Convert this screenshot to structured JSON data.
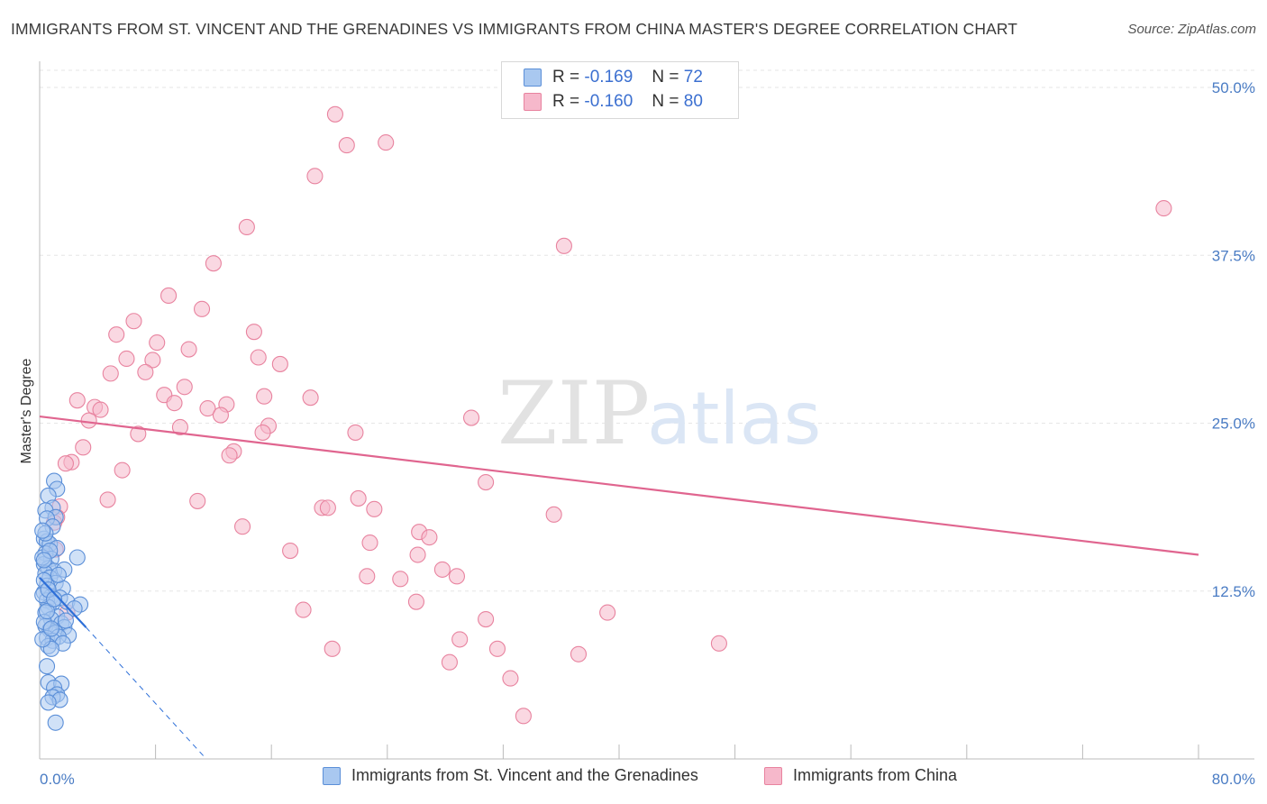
{
  "title": "IMMIGRANTS FROM ST. VINCENT AND THE GRENADINES VS IMMIGRANTS FROM CHINA MASTER'S DEGREE CORRELATION CHART",
  "source": "Source: ZipAtlas.com",
  "watermark": {
    "zip": "ZIP",
    "atlas": "atlas"
  },
  "legend": {
    "rows": [
      {
        "r_label": "R =",
        "r_value": "-0.169",
        "n_label": "N =",
        "n_value": "72"
      },
      {
        "r_label": "R =",
        "r_value": "-0.160",
        "n_label": "N =",
        "n_value": "80"
      }
    ]
  },
  "colors": {
    "blue_fill": "#a9c8f0",
    "blue_stroke": "#5b8fd8",
    "blue_line": "#2d6fd8",
    "pink_fill": "#f6b8cb",
    "pink_stroke": "#e8839f",
    "pink_line": "#e0658f",
    "tick_text": "#4a7cc4",
    "grid": "#e6e6e6"
  },
  "chart_data": {
    "type": "scatter",
    "title": "IMMIGRANTS FROM ST. VINCENT AND THE GRENADINES VS IMMIGRANTS FROM CHINA MASTER'S DEGREE CORRELATION CHART",
    "xlabel": "",
    "ylabel": "Master's Degree",
    "xlim": [
      0,
      80
    ],
    "ylim": [
      0,
      52
    ],
    "x_tick_labels": [
      {
        "value": 0,
        "label": "0.0%"
      },
      {
        "value": 80,
        "label": "80.0%"
      }
    ],
    "y_tick_labels": [
      {
        "value": 12.5,
        "label": "12.5%"
      },
      {
        "value": 25,
        "label": "25.0%"
      },
      {
        "value": 37.5,
        "label": "37.5%"
      },
      {
        "value": 50,
        "label": "50.0%"
      }
    ],
    "series": [
      {
        "name": "Immigrants from St. Vincent and the Grenadines",
        "color": "blue",
        "r": -0.169,
        "n": 72,
        "trend": {
          "x0": 0,
          "y0": 13.5,
          "x1": 3.2,
          "y1": 9.8,
          "dashed_to": {
            "x": 11.5,
            "y": 0.0
          }
        },
        "points": [
          [
            1.0,
            20.7
          ],
          [
            1.2,
            20.1
          ],
          [
            0.6,
            19.6
          ],
          [
            0.9,
            18.7
          ],
          [
            0.4,
            18.5
          ],
          [
            1.1,
            18.0
          ],
          [
            0.5,
            17.9
          ],
          [
            0.9,
            17.3
          ],
          [
            0.3,
            16.4
          ],
          [
            0.5,
            16.2
          ],
          [
            0.7,
            16.0
          ],
          [
            1.2,
            15.7
          ],
          [
            0.4,
            15.3
          ],
          [
            2.6,
            15.0
          ],
          [
            0.8,
            14.9
          ],
          [
            0.3,
            14.5
          ],
          [
            0.6,
            14.2
          ],
          [
            1.0,
            14.0
          ],
          [
            1.7,
            14.1
          ],
          [
            0.4,
            13.8
          ],
          [
            0.7,
            13.5
          ],
          [
            1.1,
            13.1
          ],
          [
            0.5,
            12.9
          ],
          [
            1.6,
            12.7
          ],
          [
            0.3,
            12.4
          ],
          [
            0.8,
            12.1
          ],
          [
            1.4,
            12.0
          ],
          [
            0.5,
            11.8
          ],
          [
            1.9,
            11.7
          ],
          [
            0.9,
            11.6
          ],
          [
            2.8,
            11.5
          ],
          [
            0.6,
            11.3
          ],
          [
            2.4,
            11.2
          ],
          [
            0.4,
            10.9
          ],
          [
            1.2,
            10.6
          ],
          [
            0.8,
            10.4
          ],
          [
            1.5,
            10.1
          ],
          [
            0.4,
            9.9
          ],
          [
            1.7,
            9.8
          ],
          [
            0.7,
            9.6
          ],
          [
            1.1,
            9.4
          ],
          [
            2.0,
            9.2
          ],
          [
            0.5,
            9.0
          ],
          [
            1.3,
            9.1
          ],
          [
            0.9,
            8.8
          ],
          [
            1.6,
            8.6
          ],
          [
            0.6,
            8.4
          ],
          [
            0.8,
            8.2
          ],
          [
            0.5,
            6.9
          ],
          [
            0.6,
            5.7
          ],
          [
            1.5,
            5.6
          ],
          [
            1.0,
            5.3
          ],
          [
            1.2,
            4.8
          ],
          [
            0.9,
            4.6
          ],
          [
            1.4,
            4.4
          ],
          [
            0.6,
            4.2
          ],
          [
            1.1,
            2.7
          ],
          [
            0.3,
            13.3
          ],
          [
            0.2,
            15.0
          ],
          [
            0.2,
            12.2
          ],
          [
            0.3,
            10.2
          ],
          [
            0.2,
            8.9
          ],
          [
            0.4,
            16.8
          ],
          [
            0.7,
            15.5
          ],
          [
            1.3,
            13.7
          ],
          [
            0.5,
            11.0
          ],
          [
            1.8,
            10.3
          ],
          [
            0.3,
            14.8
          ],
          [
            0.6,
            12.6
          ],
          [
            0.2,
            17.0
          ],
          [
            1.0,
            11.9
          ],
          [
            0.8,
            9.7
          ]
        ]
      },
      {
        "name": "Immigrants from China",
        "color": "pink",
        "r": -0.16,
        "n": 80,
        "trend": {
          "x0": 0,
          "y0": 25.5,
          "x1": 80,
          "y1": 15.2
        },
        "points": [
          [
            20.4,
            48.0
          ],
          [
            21.2,
            45.7
          ],
          [
            23.9,
            45.9
          ],
          [
            19.0,
            43.4
          ],
          [
            14.3,
            39.6
          ],
          [
            36.2,
            38.2
          ],
          [
            77.6,
            41.0
          ],
          [
            12.0,
            36.9
          ],
          [
            8.9,
            34.5
          ],
          [
            11.2,
            33.5
          ],
          [
            6.5,
            32.6
          ],
          [
            5.3,
            31.6
          ],
          [
            14.8,
            31.8
          ],
          [
            8.1,
            31.0
          ],
          [
            10.3,
            30.5
          ],
          [
            6.0,
            29.8
          ],
          [
            7.8,
            29.7
          ],
          [
            15.1,
            29.9
          ],
          [
            16.6,
            29.4
          ],
          [
            4.9,
            28.7
          ],
          [
            7.3,
            28.8
          ],
          [
            10.0,
            27.7
          ],
          [
            8.6,
            27.1
          ],
          [
            2.6,
            26.7
          ],
          [
            9.3,
            26.5
          ],
          [
            11.6,
            26.1
          ],
          [
            12.9,
            26.4
          ],
          [
            15.5,
            27.0
          ],
          [
            18.7,
            26.9
          ],
          [
            3.8,
            26.2
          ],
          [
            4.2,
            26.0
          ],
          [
            12.5,
            25.6
          ],
          [
            3.4,
            25.2
          ],
          [
            29.8,
            25.4
          ],
          [
            9.7,
            24.7
          ],
          [
            15.8,
            24.8
          ],
          [
            6.8,
            24.2
          ],
          [
            15.4,
            24.3
          ],
          [
            21.8,
            24.3
          ],
          [
            3.0,
            23.2
          ],
          [
            13.4,
            22.9
          ],
          [
            13.1,
            22.6
          ],
          [
            2.2,
            22.1
          ],
          [
            1.8,
            22.0
          ],
          [
            5.7,
            21.5
          ],
          [
            30.8,
            20.6
          ],
          [
            4.7,
            19.3
          ],
          [
            10.9,
            19.2
          ],
          [
            22.0,
            19.4
          ],
          [
            19.5,
            18.7
          ],
          [
            19.9,
            18.7
          ],
          [
            23.1,
            18.6
          ],
          [
            35.5,
            18.2
          ],
          [
            1.4,
            18.8
          ],
          [
            1.2,
            18.0
          ],
          [
            1.0,
            17.6
          ],
          [
            14.0,
            17.3
          ],
          [
            26.2,
            16.9
          ],
          [
            26.9,
            16.5
          ],
          [
            22.8,
            16.1
          ],
          [
            17.3,
            15.5
          ],
          [
            1.1,
            15.6
          ],
          [
            26.1,
            15.2
          ],
          [
            27.8,
            14.1
          ],
          [
            22.6,
            13.6
          ],
          [
            28.8,
            13.6
          ],
          [
            24.9,
            13.4
          ],
          [
            26.0,
            11.7
          ],
          [
            18.2,
            11.1
          ],
          [
            39.2,
            10.9
          ],
          [
            30.8,
            10.4
          ],
          [
            29.0,
            8.9
          ],
          [
            46.9,
            8.6
          ],
          [
            20.2,
            8.2
          ],
          [
            31.6,
            8.2
          ],
          [
            37.2,
            7.8
          ],
          [
            28.3,
            7.2
          ],
          [
            32.5,
            6.0
          ],
          [
            33.4,
            3.2
          ],
          [
            1.9,
            10.9
          ]
        ]
      }
    ]
  },
  "bottom_legend": [
    {
      "label": "Immigrants from St. Vincent and the Grenadines"
    },
    {
      "label": "Immigrants from China"
    }
  ]
}
